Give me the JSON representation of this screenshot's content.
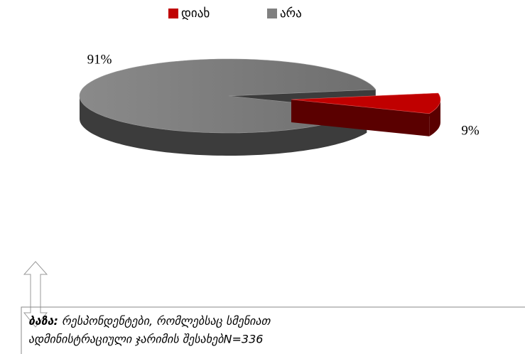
{
  "chart_data": {
    "type": "pie",
    "categories": [
      "დიახ",
      "არა"
    ],
    "values": [
      9,
      91
    ],
    "value_labels": [
      "9%",
      "91%"
    ],
    "colors": [
      "#c00000",
      "#808080"
    ],
    "legend": "top",
    "note": {
      "label": "ბაზა:",
      "lines": [
        "რესპონდენტები, რომლებსაც  სმენიათ",
        "ადმინისტრაციული ჯარიმის შესახებN=336"
      ]
    }
  }
}
